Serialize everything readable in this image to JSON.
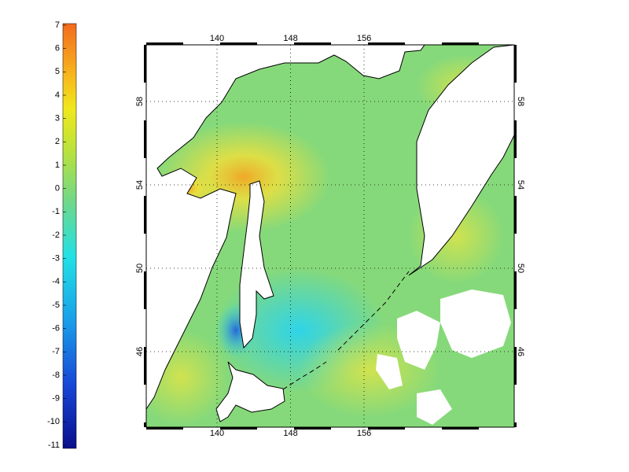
{
  "colorbar": {
    "ticks": [
      7,
      6,
      5,
      4,
      3,
      2,
      1,
      0,
      -1,
      -2,
      -3,
      -4,
      -5,
      -6,
      -7,
      -8,
      -9,
      -10,
      -11
    ]
  },
  "map": {
    "lon_ticks": [
      140,
      148,
      156
    ],
    "lat_ticks": [
      58,
      54,
      50,
      46
    ]
  }
}
